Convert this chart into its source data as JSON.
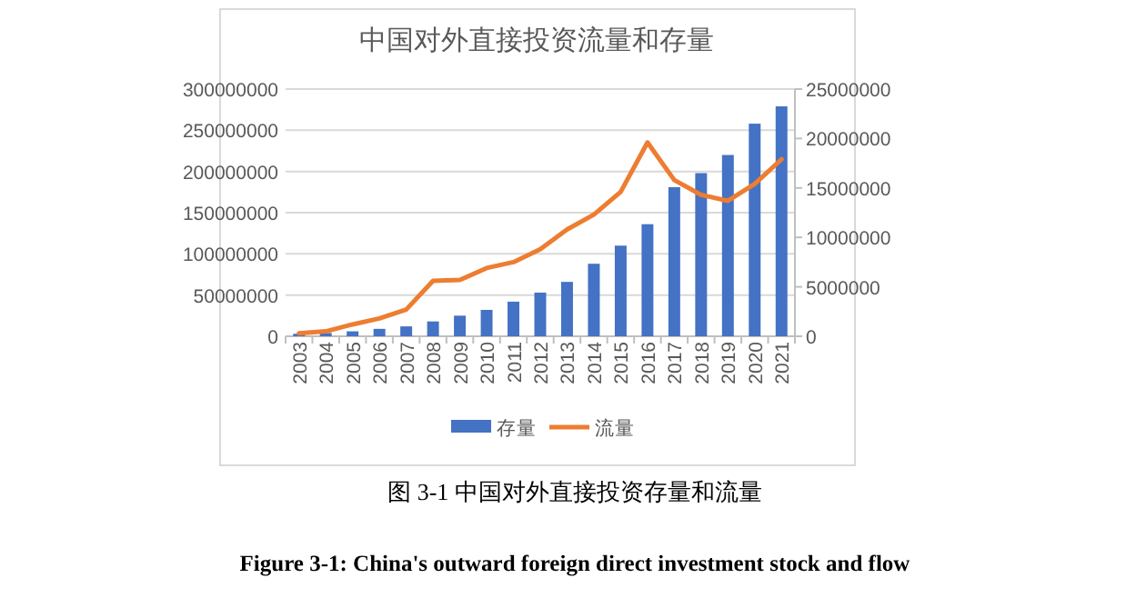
{
  "chart_data": {
    "type": "bar",
    "title": "中国对外直接投资流量和存量",
    "categories": [
      "2003",
      "2004",
      "2005",
      "2006",
      "2007",
      "2008",
      "2009",
      "2010",
      "2011",
      "2012",
      "2013",
      "2014",
      "2015",
      "2016",
      "2017",
      "2018",
      "2019",
      "2020",
      "2021"
    ],
    "series": [
      {
        "name": "存量",
        "color": "#4472c4",
        "values": [
          3000000,
          4000000,
          6000000,
          9000000,
          12000000,
          18000000,
          25000000,
          32000000,
          42000000,
          53000000,
          66000000,
          88000000,
          110000000,
          136000000,
          181000000,
          198000000,
          220000000,
          258000000,
          279000000
        ]
      },
      {
        "name": "流量",
        "type": "line",
        "axis": "y2",
        "color": "#ed7d31",
        "values": [
          300000,
          500000,
          1200000,
          1800000,
          2700000,
          5600000,
          5700000,
          6900000,
          7500000,
          8800000,
          10800000,
          12300000,
          14600000,
          19600000,
          15800000,
          14300000,
          13700000,
          15400000,
          17900000
        ]
      }
    ],
    "ylim": [
      0,
      300000000
    ],
    "yticks": [
      0,
      50000000,
      100000000,
      150000000,
      200000000,
      250000000,
      300000000
    ],
    "y2lim": [
      0,
      25000000
    ],
    "y2ticks": [
      0,
      5000000,
      10000000,
      15000000,
      20000000,
      25000000
    ],
    "grid": "y",
    "legend": "bottom",
    "annotations": [
      "图  3-1  中国对外直接投资存量和流量",
      "Figure 3-1: China's outward foreign direct investment stock and flow"
    ]
  }
}
